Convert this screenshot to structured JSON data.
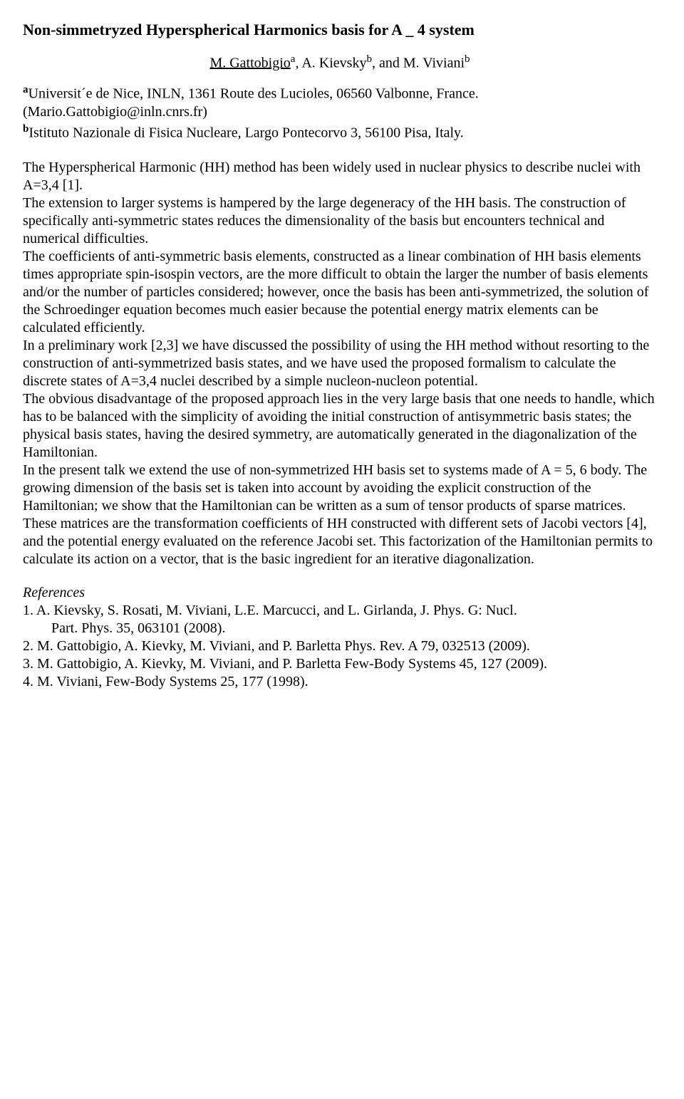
{
  "title": "Non-simmetryzed Hyperspherical Harmonics basis for A _ 4 system",
  "authors_html": "<span class='u'>M. Gattobigio</span><span class='sup'>a</span>, A. Kievsky<span class='sup'>b</span>, and M. Viviani<span class='sup'>b</span>",
  "affil_a": "<span class='sup'><b>a</b></span>Universit´e de Nice, INLN, 1361 Route des Lucioles, 06560 Valbonne, France. (Mario.Gattobigio@inln.cnrs.fr)",
  "affil_b": "<span class='sup'><b>b</b></span>Istituto Nazionale di Fisica Nucleare, Largo Pontecorvo 3, 56100 Pisa, Italy.",
  "para1": "The Hyperspherical Harmonic (HH) method has been widely used in nuclear physics to describe nuclei with A=3,4 [1].",
  "para2": "The extension to larger systems is hampered by the large degeneracy of the HH basis. The construction of specifically anti-symmetric states reduces the dimensionality of the basis but encounters technical and numerical difficulties.",
  "para3": "The coefficients of anti-symmetric basis elements, constructed as a linear combination of HH basis elements times appropriate spin-isospin vectors, are the more difficult to obtain the larger the number of basis elements and/or the number of particles considered; however, once the basis has been anti-symmetrized, the solution of the Schroedinger equation becomes much easier because the potential energy matrix elements can be calculated efficiently.",
  "para4": "In a preliminary work [2,3] we have discussed the possibility of using the HH method without resorting to the construction of anti-symmetrized basis states, and we have used the proposed formalism to calculate the discrete states of A=3,4 nuclei described by a simple nucleon-nucleon potential.",
  "para5": "The obvious disadvantage of the proposed approach lies in the very large basis that one needs to handle, which has to be balanced with the simplicity of avoiding the initial construction of antisymmetric basis states; the physical basis states, having the desired symmetry, are automatically generated in the diagonalization of the Hamiltonian.",
  "para6": "In the present talk we extend the use of non-symmetrized HH basis set to systems made of A = 5, 6 body. The growing dimension of the basis set is taken into account by avoiding the explicit construction of the Hamiltonian; we show that the Hamiltonian can be written as a sum of tensor products of sparse matrices. These matrices are the transformation coefficients of HH constructed with different sets of Jacobi vectors [4], and the potential energy evaluated on the reference Jacobi set. This factorization of the Hamiltonian permits to calculate its action on a vector, that is the basic ingredient for an iterative diagonalization.",
  "refs_head": "References",
  "ref1a": "1. A. Kievsky, S. Rosati, M. Viviani, L.E. Marcucci, and L. Girlanda, J. Phys. G: Nucl.",
  "ref1b": "Part. Phys. 35, 063101 (2008).",
  "ref2": "2. M. Gattobigio, A. Kievky, M. Viviani, and P. Barletta Phys. Rev. A 79, 032513 (2009).",
  "ref3": "3. M. Gattobigio, A. Kievky, M. Viviani, and P. Barletta Few-Body Systems 45, 127 (2009).",
  "ref4": "4. M. Viviani, Few-Body Systems 25, 177 (1998)."
}
